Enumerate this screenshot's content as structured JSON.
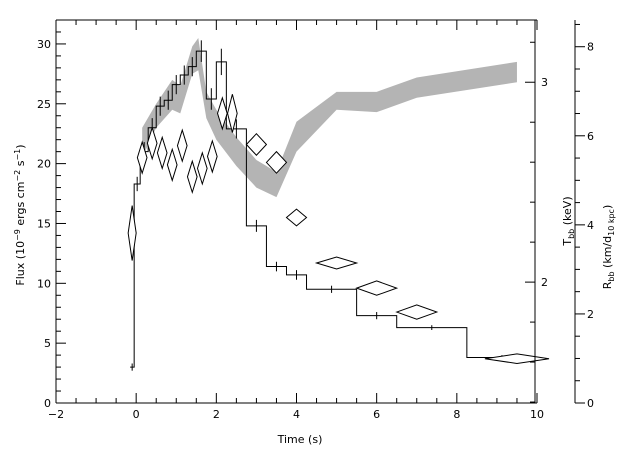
{
  "chart_data": {
    "type": "line",
    "xlabel": "Time (s)",
    "xlim": [
      -2,
      10
    ],
    "x_ticks": [
      -2,
      0,
      2,
      4,
      6,
      8,
      10
    ],
    "left_axis": {
      "label_prefix": "Flux (10",
      "label_exp1": "−9",
      "label_mid": " ergs cm",
      "label_exp2": "−2",
      "label_mid2": " s",
      "label_exp3": "−1",
      "label_suffix": ")",
      "ylim": [
        0,
        32
      ],
      "ticks": [
        0,
        5,
        10,
        15,
        20,
        25,
        30
      ]
    },
    "temperature_axis": {
      "label_main": "T",
      "label_sub": "bb",
      "label_suffix": " (keV)",
      "ticks": [
        2,
        3
      ],
      "tick_positions_flux": [
        10.1,
        26.8
      ]
    },
    "radius_axis": {
      "label_main": "R",
      "label_sub": "bb",
      "label_mid": " (km/d",
      "label_sub2": "10 kpc",
      "label_suffix": ")",
      "ylim": [
        0,
        8.6
      ],
      "ticks": [
        0,
        2,
        4,
        6,
        8
      ]
    },
    "series": [
      {
        "style": "histogram",
        "color": "#000000",
        "steps": [
          {
            "x0": -0.15,
            "x1": -0.05,
            "y": 3.0,
            "err": 0.3
          },
          {
            "x0": -0.05,
            "x1": 0.1,
            "y": 18.3,
            "err": 0.6
          },
          {
            "x0": 0.1,
            "x1": 0.3,
            "y": 21.0,
            "err": 0.8
          },
          {
            "x0": 0.3,
            "x1": 0.5,
            "y": 23.0,
            "err": 0.8
          },
          {
            "x0": 0.5,
            "x1": 0.7,
            "y": 24.8,
            "err": 0.8
          },
          {
            "x0": 0.7,
            "x1": 0.9,
            "y": 25.3,
            "err": 0.8
          },
          {
            "x0": 0.9,
            "x1": 1.1,
            "y": 26.6,
            "err": 0.8
          },
          {
            "x0": 1.1,
            "x1": 1.3,
            "y": 27.4,
            "err": 0.8
          },
          {
            "x0": 1.3,
            "x1": 1.5,
            "y": 28.1,
            "err": 0.8
          },
          {
            "x0": 1.5,
            "x1": 1.75,
            "y": 29.4,
            "err": 0.9
          },
          {
            "x0": 1.75,
            "x1": 2.0,
            "y": 25.4,
            "err": 0.9
          },
          {
            "x0": 2.0,
            "x1": 2.25,
            "y": 28.5,
            "err": 1.1
          },
          {
            "x0": 2.25,
            "x1": 2.75,
            "y": 22.9,
            "err": 0.8
          },
          {
            "x0": 2.75,
            "x1": 3.25,
            "y": 14.8,
            "err": 0.5
          },
          {
            "x0": 3.25,
            "x1": 3.75,
            "y": 11.4,
            "err": 0.4
          },
          {
            "x0": 3.75,
            "x1": 4.25,
            "y": 10.7,
            "err": 0.4
          },
          {
            "x0": 4.25,
            "x1": 5.5,
            "y": 9.5,
            "err": 0.3
          },
          {
            "x0": 5.5,
            "x1": 6.5,
            "y": 7.3,
            "err": 0.3
          },
          {
            "x0": 6.5,
            "x1": 8.25,
            "y": 6.3,
            "err": 0.2
          },
          {
            "x0": 8.25,
            "x1": 10.0,
            "y": 3.8,
            "err": 0.2
          }
        ]
      },
      {
        "style": "band",
        "color": "#b4b4b4",
        "points": [
          {
            "x": 0.15,
            "lo": 20.5,
            "hi": 23.0
          },
          {
            "x": 0.5,
            "lo": 23.0,
            "hi": 25.0
          },
          {
            "x": 0.9,
            "lo": 24.5,
            "hi": 27.0
          },
          {
            "x": 1.1,
            "lo": 24.2,
            "hi": 26.5
          },
          {
            "x": 1.4,
            "lo": 27.5,
            "hi": 29.8
          },
          {
            "x": 1.55,
            "lo": 27.8,
            "hi": 30.5
          },
          {
            "x": 1.75,
            "lo": 23.8,
            "hi": 26.0
          },
          {
            "x": 2.0,
            "lo": 22.0,
            "hi": 24.5
          },
          {
            "x": 2.5,
            "lo": 19.8,
            "hi": 22.2
          },
          {
            "x": 3.0,
            "lo": 18.0,
            "hi": 20.3
          },
          {
            "x": 3.5,
            "lo": 17.2,
            "hi": 19.3
          },
          {
            "x": 4.0,
            "lo": 21.0,
            "hi": 23.5
          },
          {
            "x": 5.0,
            "lo": 24.5,
            "hi": 26.0
          },
          {
            "x": 6.0,
            "lo": 24.3,
            "hi": 26.0
          },
          {
            "x": 7.0,
            "lo": 25.5,
            "hi": 27.2
          },
          {
            "x": 9.5,
            "lo": 26.8,
            "hi": 28.5
          }
        ]
      },
      {
        "style": "diamonds",
        "color": "#000000",
        "points": [
          {
            "x": -0.1,
            "y": 14.2,
            "dx": 0.1,
            "dy": 2.3
          },
          {
            "x": 0.15,
            "y": 20.5,
            "dx": 0.12,
            "dy": 1.3
          },
          {
            "x": 0.4,
            "y": 21.7,
            "dx": 0.12,
            "dy": 1.3
          },
          {
            "x": 0.65,
            "y": 20.9,
            "dx": 0.12,
            "dy": 1.3
          },
          {
            "x": 0.9,
            "y": 19.9,
            "dx": 0.12,
            "dy": 1.3
          },
          {
            "x": 1.15,
            "y": 21.5,
            "dx": 0.12,
            "dy": 1.3
          },
          {
            "x": 1.4,
            "y": 18.9,
            "dx": 0.12,
            "dy": 1.3
          },
          {
            "x": 1.65,
            "y": 19.6,
            "dx": 0.12,
            "dy": 1.3
          },
          {
            "x": 1.9,
            "y": 20.6,
            "dx": 0.12,
            "dy": 1.3
          },
          {
            "x": 2.15,
            "y": 24.2,
            "dx": 0.12,
            "dy": 1.3
          },
          {
            "x": 2.4,
            "y": 24.2,
            "dx": 0.12,
            "dy": 1.6
          },
          {
            "x": 3.0,
            "y": 21.6,
            "dx": 0.25,
            "dy": 0.9
          },
          {
            "x": 3.5,
            "y": 20.1,
            "dx": 0.25,
            "dy": 0.9
          },
          {
            "x": 4.0,
            "y": 15.5,
            "dx": 0.25,
            "dy": 0.7
          },
          {
            "x": 5.0,
            "y": 11.7,
            "dx": 0.5,
            "dy": 0.5
          },
          {
            "x": 6.0,
            "y": 9.6,
            "dx": 0.5,
            "dy": 0.6
          },
          {
            "x": 7.0,
            "y": 7.6,
            "dx": 0.5,
            "dy": 0.6
          },
          {
            "x": 9.5,
            "y": 3.7,
            "dx": 0.8,
            "dy": 0.4
          }
        ]
      }
    ]
  }
}
